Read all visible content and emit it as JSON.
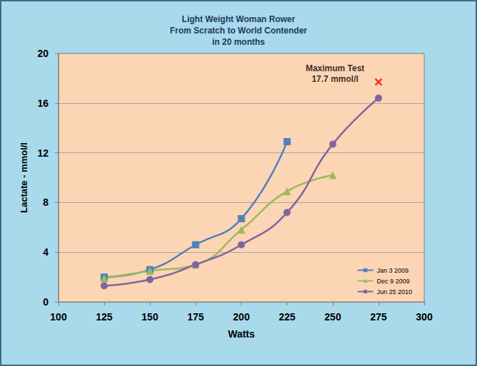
{
  "chart_data": {
    "type": "line",
    "title": [
      "Light Weight Woman Rower",
      "From Scratch to World Contender",
      "in 20 months"
    ],
    "x_label": "Watts",
    "y_label": "Lactate - mmol/l",
    "xlim": [
      100,
      300
    ],
    "xticks": [
      100,
      125,
      150,
      175,
      200,
      225,
      250,
      275,
      300
    ],
    "ylim": [
      0,
      20
    ],
    "yticks": [
      0,
      4,
      8,
      12,
      16,
      20
    ],
    "grid": true,
    "legend": "lower right",
    "series": [
      {
        "name": "Jan 3 2009",
        "color": "#4f81bd",
        "marker": "square",
        "x": [
          125,
          150,
          175,
          200,
          225
        ],
        "values": [
          2.0,
          2.6,
          4.6,
          6.7,
          12.9
        ]
      },
      {
        "name": "Dec 9 2009",
        "color": "#9bbb59",
        "marker": "triangle",
        "x": [
          125,
          150,
          175,
          200,
          225,
          250
        ],
        "values": [
          1.9,
          2.5,
          3.0,
          5.8,
          8.9,
          10.2
        ]
      },
      {
        "name": "Jun 25 2010",
        "color": "#8064a2",
        "marker": "circle",
        "x": [
          125,
          150,
          175,
          200,
          225,
          250,
          275
        ],
        "values": [
          1.3,
          1.8,
          3.0,
          4.6,
          7.2,
          12.7,
          16.4
        ]
      }
    ],
    "annotations": [
      {
        "text": [
          "Maximum Test",
          "17.7 mmol/l"
        ],
        "x": 275,
        "y": 17.7,
        "marker": "x",
        "color": "#ff0000"
      }
    ]
  }
}
